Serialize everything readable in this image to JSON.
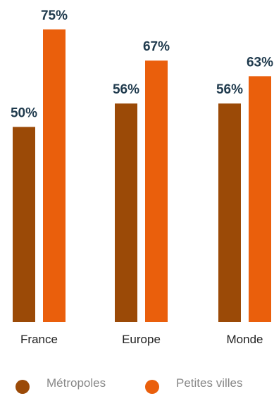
{
  "chart_data": {
    "type": "bar",
    "categories": [
      "France",
      "Europe",
      "Monde"
    ],
    "series": [
      {
        "name": "Métropoles",
        "values": [
          50,
          56,
          56
        ],
        "labels": [
          "50%",
          "56%",
          "56%"
        ],
        "color": "#9b4a07"
      },
      {
        "name": "Petites villes",
        "values": [
          75,
          67,
          63
        ],
        "labels": [
          "75%",
          "67%",
          "63%"
        ],
        "color": "#ea5f0c"
      }
    ],
    "title": "",
    "xlabel": "",
    "ylabel": "",
    "ylim": [
      0,
      100
    ],
    "grid": false,
    "legend": "bottom",
    "value_label_color": "#1f3a4d",
    "category_label_color": "#222222",
    "legend_label_color": "#888888"
  }
}
